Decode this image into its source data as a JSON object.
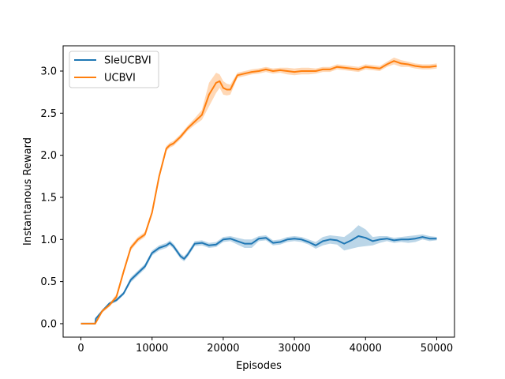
{
  "chart_data": {
    "type": "line",
    "xlabel": "Episodes",
    "ylabel": "Instantanous Reward",
    "xlim": [
      -2500,
      52500
    ],
    "ylim": [
      -0.16,
      3.3
    ],
    "xticks": [
      0,
      10000,
      20000,
      30000,
      40000,
      50000
    ],
    "xtick_labels": [
      "0",
      "10000",
      "20000",
      "30000",
      "40000",
      "50000"
    ],
    "yticks": [
      0.0,
      0.5,
      1.0,
      1.5,
      2.0,
      2.5,
      3.0
    ],
    "ytick_labels": [
      "0.0",
      "0.5",
      "1.0",
      "1.5",
      "2.0",
      "2.5",
      "3.0"
    ],
    "grid": false,
    "legend_position": "upper-left",
    "series": [
      {
        "name": "SleUCBVI",
        "color": "#1f77b4",
        "x": [
          0,
          2000,
          2100,
          3000,
          4000,
          5000,
          6000,
          7000,
          8000,
          9000,
          10000,
          11000,
          12000,
          12500,
          13000,
          14000,
          14500,
          15000,
          16000,
          17000,
          18000,
          19000,
          20000,
          21000,
          22000,
          23000,
          24000,
          25000,
          26000,
          27000,
          28000,
          29000,
          30000,
          31000,
          32000,
          33000,
          34000,
          35000,
          36000,
          37000,
          38000,
          39000,
          40000,
          41000,
          42000,
          43000,
          44000,
          45000,
          46000,
          47000,
          48000,
          49000,
          50000
        ],
        "y": [
          0.0,
          0.0,
          0.06,
          0.15,
          0.24,
          0.28,
          0.36,
          0.52,
          0.6,
          0.68,
          0.84,
          0.9,
          0.93,
          0.96,
          0.92,
          0.8,
          0.77,
          0.82,
          0.95,
          0.96,
          0.93,
          0.94,
          1.0,
          1.01,
          0.98,
          0.95,
          0.95,
          1.01,
          1.02,
          0.96,
          0.97,
          1.0,
          1.01,
          1.0,
          0.97,
          0.93,
          0.98,
          1.0,
          0.99,
          0.95,
          0.99,
          1.04,
          1.02,
          0.98,
          1.0,
          1.01,
          0.99,
          1.0,
          1.0,
          1.01,
          1.03,
          1.01,
          1.01
        ],
        "band": [
          0,
          0,
          0.01,
          0.015,
          0.015,
          0.02,
          0.02,
          0.03,
          0.03,
          0.03,
          0.03,
          0.03,
          0.03,
          0.03,
          0.03,
          0.03,
          0.03,
          0.03,
          0.03,
          0.03,
          0.03,
          0.03,
          0.03,
          0.03,
          0.04,
          0.05,
          0.05,
          0.03,
          0.03,
          0.03,
          0.03,
          0.03,
          0.03,
          0.03,
          0.03,
          0.04,
          0.05,
          0.05,
          0.05,
          0.08,
          0.1,
          0.13,
          0.1,
          0.05,
          0.04,
          0.03,
          0.03,
          0.03,
          0.04,
          0.04,
          0.03,
          0.03,
          0.02
        ]
      },
      {
        "name": "UCBVI",
        "color": "#ff7f0e",
        "x": [
          0,
          2000,
          3000,
          4000,
          5000,
          6000,
          7000,
          8000,
          9000,
          10000,
          11000,
          12000,
          12500,
          13000,
          14000,
          15000,
          16000,
          17000,
          18000,
          19000,
          19500,
          20000,
          20500,
          21000,
          22000,
          23000,
          24000,
          25000,
          26000,
          27000,
          28000,
          29000,
          30000,
          31000,
          32000,
          33000,
          34000,
          35000,
          36000,
          37000,
          38000,
          39000,
          40000,
          41000,
          42000,
          43000,
          44000,
          45000,
          46000,
          47000,
          48000,
          49000,
          50000
        ],
        "y": [
          0.0,
          0.0,
          0.15,
          0.22,
          0.32,
          0.62,
          0.9,
          1.0,
          1.06,
          1.32,
          1.75,
          2.08,
          2.12,
          2.14,
          2.22,
          2.32,
          2.4,
          2.48,
          2.72,
          2.86,
          2.88,
          2.8,
          2.78,
          2.78,
          2.95,
          2.97,
          2.99,
          3.0,
          3.02,
          3.0,
          3.01,
          3.0,
          2.99,
          3.0,
          3.0,
          3.0,
          3.02,
          3.02,
          3.05,
          3.04,
          3.03,
          3.02,
          3.05,
          3.04,
          3.03,
          3.08,
          3.12,
          3.09,
          3.08,
          3.06,
          3.05,
          3.05,
          3.06
        ],
        "band": [
          0,
          0,
          0.02,
          0.02,
          0.03,
          0.03,
          0.03,
          0.03,
          0.03,
          0.03,
          0.03,
          0.03,
          0.03,
          0.03,
          0.03,
          0.03,
          0.04,
          0.06,
          0.14,
          0.12,
          0.08,
          0.08,
          0.07,
          0.06,
          0.03,
          0.03,
          0.03,
          0.03,
          0.03,
          0.03,
          0.03,
          0.04,
          0.04,
          0.04,
          0.04,
          0.03,
          0.03,
          0.03,
          0.03,
          0.03,
          0.03,
          0.03,
          0.03,
          0.03,
          0.03,
          0.03,
          0.04,
          0.04,
          0.03,
          0.03,
          0.03,
          0.03,
          0.03
        ]
      }
    ]
  }
}
